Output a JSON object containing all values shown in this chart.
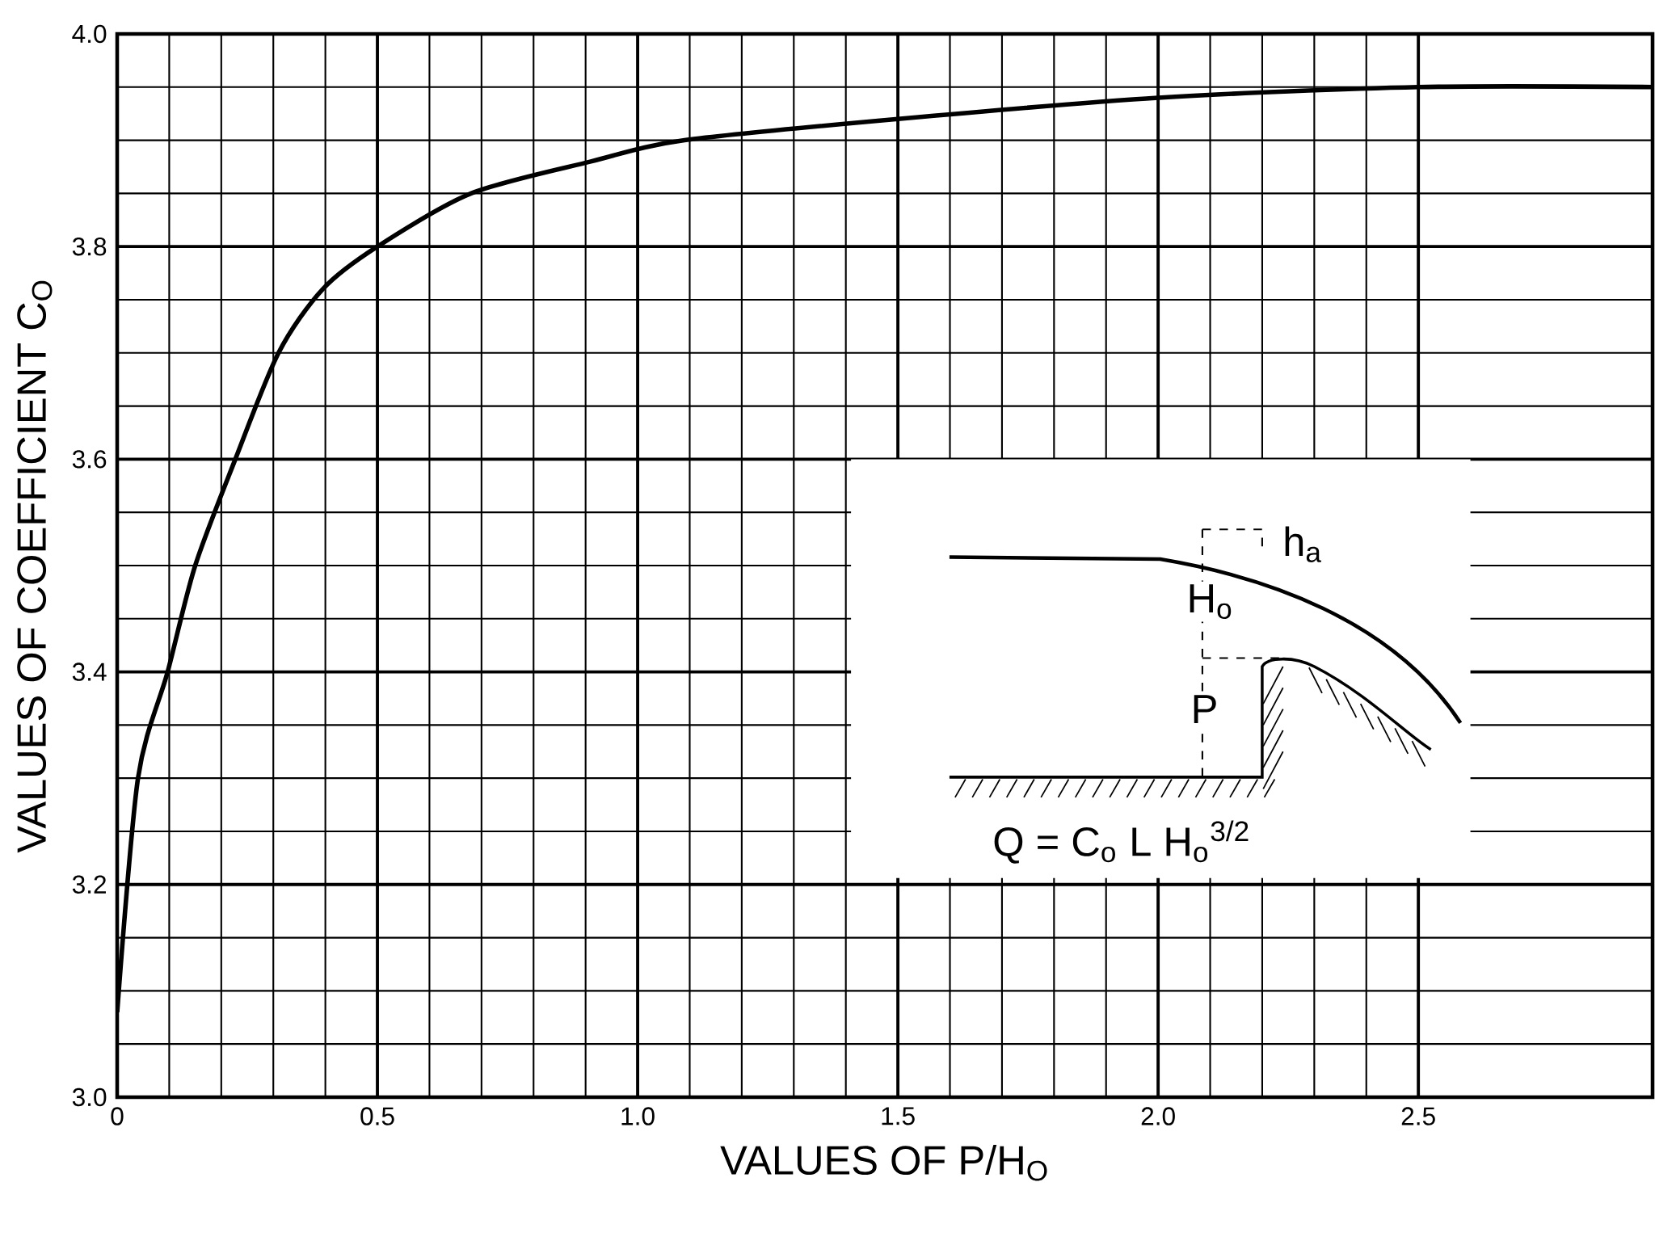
{
  "chart_data": {
    "type": "line",
    "xlabel": "VALUES OF P/H$_{O}$",
    "ylabel": "VALUES OF COEFFICIENT C$_{O}$",
    "x": [
      0,
      0.04,
      0.097,
      0.15,
      0.227,
      0.31,
      0.395,
      0.5,
      0.68,
      0.91,
      1.09,
      1.5,
      2.0,
      2.5,
      2.95
    ],
    "series": [
      {
        "color": "#000000",
        "values": [
          3.08,
          3.3,
          3.4,
          3.5,
          3.6,
          3.7,
          3.76,
          3.8,
          3.85,
          3.88,
          3.9,
          3.92,
          3.94,
          3.95,
          3.95
        ]
      }
    ],
    "xlim": [
      0,
      2.95
    ],
    "ylim": [
      3.0,
      4.0
    ],
    "xticks": [
      0,
      0.5,
      {
        "value": 1.0,
        "label": "1.0"
      },
      1.5,
      {
        "value": 2.0,
        "label": "2.0"
      },
      2.5
    ],
    "yticks": [
      {
        "value": 3.0,
        "label": "3.0"
      },
      3.2,
      3.4,
      3.6,
      3.8,
      {
        "value": 4.0,
        "label": "4.0"
      }
    ],
    "grid": true,
    "marker": "none",
    "line_style": "solid",
    "annotations": [
      "h$_{a}$",
      "H$_{o}$",
      "P",
      "Q = C$_{o}$ L H$_{o}$$^{3/2}$"
    ]
  }
}
